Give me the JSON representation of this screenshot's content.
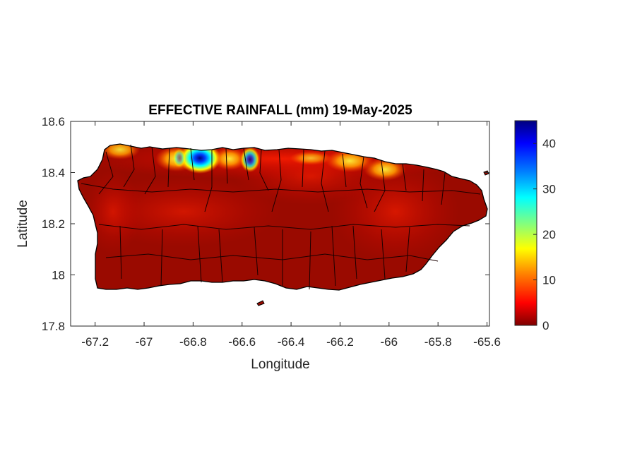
{
  "title": "EFFECTIVE RAINFALL (mm) 19-May-2025",
  "xlabel": "Longitude",
  "ylabel": "Latitude",
  "x_ticks": [
    "-67.2",
    "-67",
    "-66.8",
    "-66.6",
    "-66.4",
    "-66.2",
    "-66",
    "-65.8",
    "-65.6"
  ],
  "y_ticks": [
    "18.6",
    "18.4",
    "18.2",
    "18",
    "17.8"
  ],
  "colorbar": {
    "ticks": [
      "40",
      "30",
      "20",
      "10",
      "0"
    ],
    "range": [
      0,
      45
    ],
    "colormap": "jet",
    "colors": [
      "#7f0000",
      "#ff0000",
      "#ff8000",
      "#ffff00",
      "#80ff80",
      "#00ffff",
      "#0080ff",
      "#0000ff",
      "#00007f"
    ]
  },
  "chart_data": {
    "type": "heatmap",
    "title": "EFFECTIVE RAINFALL (mm) 19-May-2025",
    "xlabel": "Longitude",
    "ylabel": "Latitude",
    "xlim": [
      -67.3,
      -65.59
    ],
    "ylim": [
      17.8,
      18.6
    ],
    "clim": [
      0,
      45
    ],
    "region": "Puerto Rico",
    "hotspots": [
      {
        "lon": -66.77,
        "lat": 18.46,
        "value": 44
      },
      {
        "lon": -66.84,
        "lat": 18.46,
        "value": 30
      },
      {
        "lon": -66.57,
        "lat": 18.47,
        "value": 25
      },
      {
        "lon": -66.89,
        "lat": 18.47,
        "value": 18
      },
      {
        "lon": -66.02,
        "lat": 18.41,
        "value": 14
      },
      {
        "lon": -66.18,
        "lat": 18.44,
        "value": 12
      }
    ],
    "background_value": 2
  }
}
